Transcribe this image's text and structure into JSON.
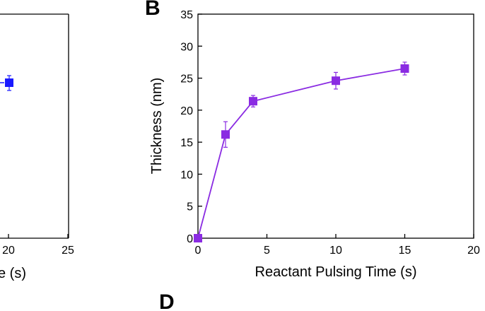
{
  "panels": {
    "b_letter": "B",
    "d_letter": "D"
  },
  "left_partial": {
    "x_tick_labels": [
      "20",
      "25"
    ],
    "xlabel_fragment": "e (s)",
    "marker_color": "#1a1aff",
    "point": {
      "x": 20,
      "y": 0.68
    }
  },
  "chart_data": {
    "type": "line",
    "title": "",
    "xlabel": "Reactant Pulsing Time (s)",
    "ylabel": "Thickness (nm)",
    "xlim": [
      0,
      20
    ],
    "ylim": [
      0,
      35
    ],
    "xticks": [
      0,
      5,
      10,
      15,
      20
    ],
    "yticks": [
      0,
      5,
      10,
      15,
      20,
      25,
      30,
      35
    ],
    "grid": false,
    "series": [
      {
        "color": "#8a2be2",
        "marker": "square",
        "x": [
          0,
          2,
          4,
          10,
          15
        ],
        "y": [
          0,
          16.2,
          21.4,
          24.6,
          26.5
        ],
        "yerr": [
          0.3,
          2.0,
          0.9,
          1.3,
          1.0
        ]
      }
    ]
  }
}
